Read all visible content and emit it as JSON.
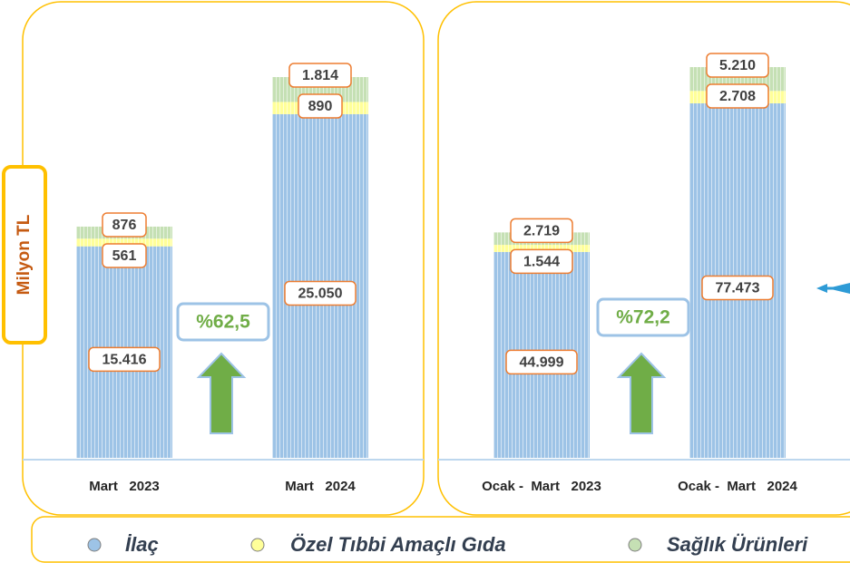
{
  "chart_data": [
    {
      "type": "bar",
      "stacked": true,
      "y_label": "Milyon TL",
      "categories": [
        "Mart   2023",
        "Mart   2024"
      ],
      "series": [
        {
          "name": "İlaç",
          "color": "#9dc3e6",
          "values": [
            15416,
            25050
          ],
          "value_labels": [
            "15.416",
            "25.050"
          ]
        },
        {
          "name": "Özel Tıbbi Amaçlı Gıda",
          "color": "#ffff99",
          "values": [
            561,
            890
          ],
          "value_labels": [
            "561",
            "890"
          ]
        },
        {
          "name": "Sağlık Ürünleri",
          "color": "#c5e0b4",
          "values": [
            876,
            1814
          ],
          "value_labels": [
            "876",
            "1.814"
          ]
        }
      ],
      "annotation": "%62,5"
    },
    {
      "type": "bar",
      "stacked": true,
      "categories": [
        "Ocak -  Mart   2023",
        "Ocak -  Mart   2024"
      ],
      "series": [
        {
          "color": "#9dc3e6",
          "values": [
            44999,
            77473
          ],
          "value_labels": [
            "44.999",
            "77.473"
          ]
        },
        {
          "color": "#ffff99",
          "values": [
            1544,
            2708
          ],
          "value_labels": [
            "1.544",
            "2.708"
          ]
        },
        {
          "color": "#c5e0b4",
          "values": [
            2719,
            5210
          ],
          "value_labels": [
            "2.719",
            "5.210"
          ]
        }
      ],
      "annotation": "%72,2"
    }
  ]
}
